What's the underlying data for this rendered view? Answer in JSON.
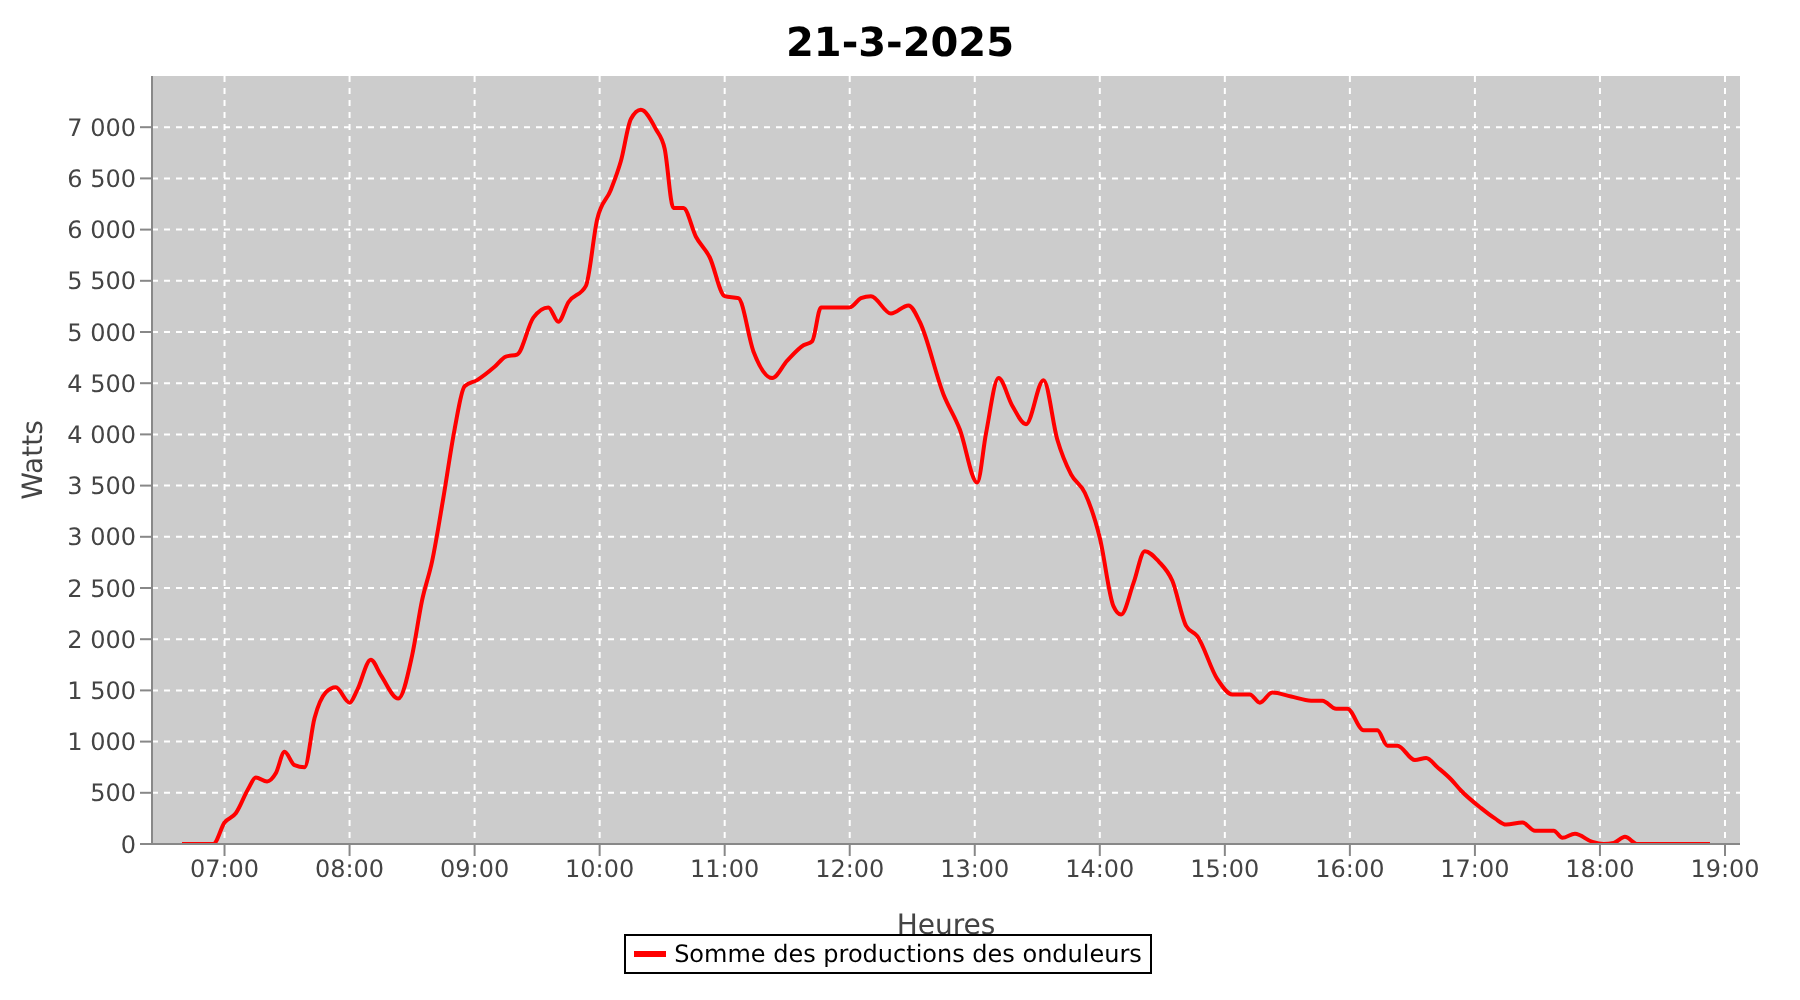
{
  "chart_data": {
    "type": "line",
    "title": "21-3-2025",
    "xlabel": "Heures",
    "ylabel": "Watts",
    "x": [
      6.66,
      6.91,
      7.0,
      7.09,
      7.19,
      7.25,
      7.34,
      7.41,
      7.48,
      7.56,
      7.64,
      7.72,
      7.81,
      7.89,
      8.0,
      8.06,
      8.17,
      8.25,
      8.39,
      8.5,
      8.58,
      8.66,
      8.75,
      8.84,
      8.92,
      9.02,
      9.16,
      9.25,
      9.34,
      9.47,
      9.59,
      9.67,
      9.75,
      9.89,
      9.98,
      10.09,
      10.17,
      10.25,
      10.33,
      10.45,
      10.52,
      10.59,
      10.67,
      10.77,
      10.88,
      11.0,
      11.11,
      11.23,
      11.38,
      11.5,
      11.63,
      11.7,
      11.77,
      11.86,
      12.0,
      12.09,
      12.17,
      12.33,
      12.47,
      12.56,
      12.75,
      12.88,
      13.02,
      13.09,
      13.19,
      13.3,
      13.41,
      13.55,
      13.66,
      13.77,
      13.88,
      14.0,
      14.11,
      14.17,
      14.27,
      14.36,
      14.47,
      14.58,
      14.69,
      14.78,
      14.94,
      15.06,
      15.2,
      15.28,
      15.38,
      15.53,
      15.69,
      15.78,
      15.89,
      15.98,
      16.11,
      16.22,
      16.3,
      16.38,
      16.52,
      16.61,
      16.7,
      16.81,
      16.89,
      17.05,
      17.16,
      17.25,
      17.38,
      17.48,
      17.63,
      17.7,
      17.8,
      17.94,
      18.03,
      18.11,
      18.2,
      18.3,
      18.88
    ],
    "series": [
      {
        "name": "Somme des productions des onduleurs",
        "color": "#ff0000",
        "values": [
          0,
          0,
          210,
          300,
          540,
          650,
          610,
          690,
          900,
          770,
          750,
          1230,
          1480,
          1530,
          1380,
          1500,
          1800,
          1650,
          1420,
          1840,
          2380,
          2760,
          3380,
          4050,
          4470,
          4530,
          4660,
          4760,
          4780,
          5140,
          5240,
          5100,
          5290,
          5450,
          6100,
          6390,
          6670,
          7080,
          7170,
          6980,
          6790,
          6210,
          6210,
          5930,
          5730,
          5350,
          5330,
          4810,
          4550,
          4720,
          4870,
          4910,
          5240,
          5240,
          5240,
          5330,
          5350,
          5180,
          5260,
          5100,
          4390,
          4050,
          3530,
          4010,
          4550,
          4280,
          4100,
          4530,
          3950,
          3610,
          3430,
          2990,
          2320,
          2240,
          2550,
          2860,
          2760,
          2570,
          2130,
          2030,
          1610,
          1460,
          1460,
          1380,
          1480,
          1440,
          1400,
          1400,
          1320,
          1320,
          1110,
          1110,
          960,
          960,
          820,
          840,
          750,
          630,
          520,
          350,
          250,
          190,
          210,
          130,
          130,
          60,
          100,
          20,
          0,
          10,
          70,
          0,
          0
        ]
      }
    ],
    "xlim": [
      6.42,
      19.12
    ],
    "ylim": [
      0,
      7500
    ],
    "xticks": [
      {
        "value": 7,
        "label": "07:00"
      },
      {
        "value": 8,
        "label": "08:00"
      },
      {
        "value": 9,
        "label": "09:00"
      },
      {
        "value": 10,
        "label": "10:00"
      },
      {
        "value": 11,
        "label": "11:00"
      },
      {
        "value": 12,
        "label": "12:00"
      },
      {
        "value": 13,
        "label": "13:00"
      },
      {
        "value": 14,
        "label": "14:00"
      },
      {
        "value": 15,
        "label": "15:00"
      },
      {
        "value": 16,
        "label": "16:00"
      },
      {
        "value": 17,
        "label": "17:00"
      },
      {
        "value": 18,
        "label": "18:00"
      },
      {
        "value": 19,
        "label": "19:00"
      }
    ],
    "yticks": [
      0,
      500,
      {
        "value": 1000,
        "label": "1 000"
      },
      {
        "value": 1500,
        "label": "1 500"
      },
      {
        "value": 2000,
        "label": "2 000"
      },
      {
        "value": 2500,
        "label": "2 500"
      },
      {
        "value": 3000,
        "label": "3 000"
      },
      {
        "value": 3500,
        "label": "3 500"
      },
      {
        "value": 4000,
        "label": "4 000"
      },
      {
        "value": 4500,
        "label": "4 500"
      },
      {
        "value": 5000,
        "label": "5 000"
      },
      {
        "value": 5500,
        "label": "5 500"
      },
      {
        "value": 6000,
        "label": "6 000"
      },
      {
        "value": 6500,
        "label": "6 500"
      },
      {
        "value": 7000,
        "label": "7 000"
      }
    ],
    "grid": true,
    "legend": "bottom"
  }
}
